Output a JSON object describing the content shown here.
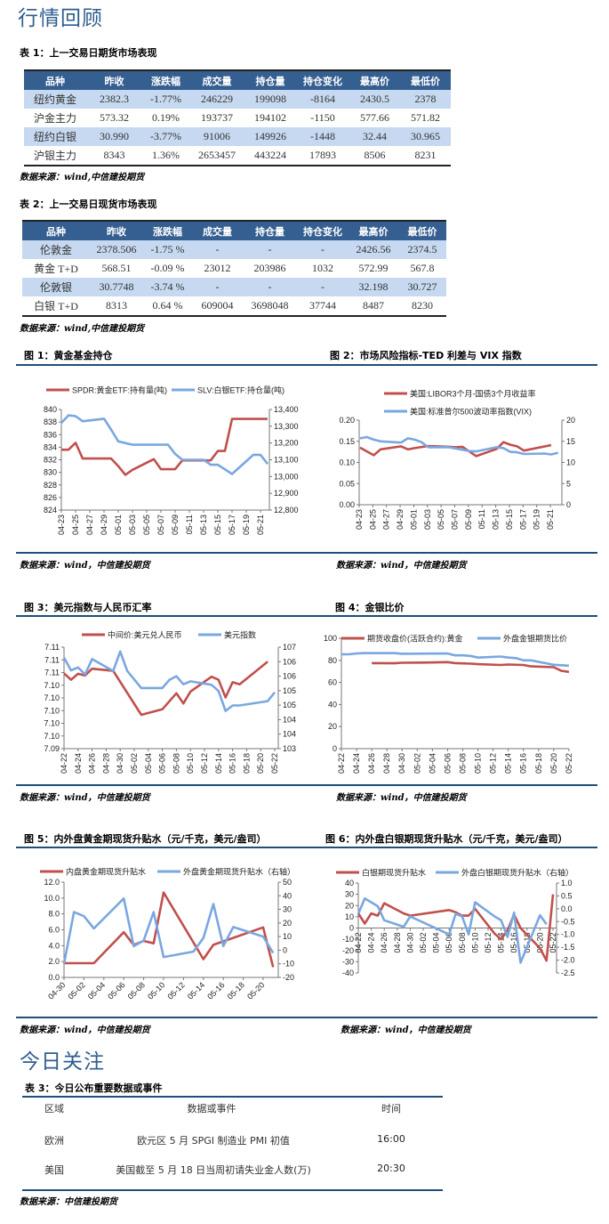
{
  "review": {
    "title": "行情回顾",
    "table1": {
      "caption": "表 1：上一交易日期货市场表现",
      "headers": [
        "品种",
        "昨收",
        "涨跌幅",
        "成交量",
        "持仓量",
        "持仓变化",
        "最高价",
        "最低价"
      ],
      "rows": [
        [
          "纽约黄金",
          "2382.3",
          "-1.77%",
          "246229",
          "199098",
          "-8164",
          "2430.5",
          "2378"
        ],
        [
          "沪金主力",
          "573.32",
          "0.19%",
          "193737",
          "194102",
          "-1150",
          "577.66",
          "571.82"
        ],
        [
          "纽约白银",
          "30.990",
          "-3.77%",
          "91006",
          "149926",
          "-1448",
          "32.44",
          "30.965"
        ],
        [
          "沪银主力",
          "8343",
          "1.36%",
          "2653457",
          "443224",
          "17893",
          "8506",
          "8231"
        ]
      ],
      "source": "数据来源：wind,中信建投期货"
    },
    "table2": {
      "caption": "表 2：上一交易日现货市场表现",
      "headers": [
        "品种",
        "昨收",
        "涨跌幅",
        "成交量",
        "持仓量",
        "持仓变化",
        "最高价",
        "最低价"
      ],
      "rows": [
        [
          "伦敦金",
          "2378.506",
          "-1.75 %",
          "-",
          "-",
          "-",
          "2426.56",
          "2374.5"
        ],
        [
          "黄金 T+D",
          "568.51",
          "-0.09 %",
          "23012",
          "203986",
          "1032",
          "572.99",
          "567.8"
        ],
        [
          "伦敦银",
          "30.7748",
          "-3.74 %",
          "-",
          "-",
          "-",
          "32.198",
          "30.727"
        ],
        [
          "白银 T+D",
          "8313",
          "0.64 %",
          "609004",
          "3698048",
          "37744",
          "8487",
          "8230"
        ]
      ],
      "source": "数据来源：wind,中信建投期货"
    }
  },
  "figures": [
    {
      "title": "图 1：黄金基金持仓",
      "source": "数据来源：wind，中信建投期货"
    },
    {
      "title": "图 2：市场风险指标-TED 利差与 VIX 指数",
      "source": "数据来源：wind，中信建投期货"
    },
    {
      "title": "图 3：美元指数与人民币汇率",
      "source": "数据来源：wind，中信建投期货"
    },
    {
      "title": "图 4：金银比价",
      "source": "数据来源：wind，中信建投期货"
    },
    {
      "title": "图 5：内外盘黄金期现货升贴水（元/千克，美元/盎司）",
      "source": "数据来源：wind，中信建投期货"
    },
    {
      "title": "图 6：内外盘白银期现货升贴水（元/千克，美元/盎司）",
      "source": "数据来源：wind，中信建投期货"
    }
  ],
  "chart_data": [
    {
      "type": "line",
      "title": "图 1：黄金基金持仓",
      "ylim_left": [
        824,
        840
      ],
      "ylim_right": [
        12800,
        13400
      ],
      "left_ticks": [
        "840",
        "838",
        "836",
        "834",
        "832",
        "830",
        "828",
        "826",
        "824"
      ],
      "right_ticks": [
        "13,400",
        "13,300",
        "13,200",
        "13,100",
        "13,000",
        "12,900",
        "12,800"
      ],
      "x_ticks": [
        "04-23",
        "04-25",
        "04-27",
        "04-29",
        "05-01",
        "05-03",
        "05-05",
        "05-07",
        "05-09",
        "05-11",
        "05-13",
        "05-15",
        "05-17",
        "05-19",
        "05-21"
      ],
      "legend": "top",
      "series": [
        {
          "name": "SPDR:黄金ETF:持有量(吨)",
          "axis": "left",
          "color": "#c0504d",
          "x": [
            "04-23",
            "04-24",
            "04-25",
            "04-26",
            "04-29",
            "04-30",
            "05-01",
            "05-02",
            "05-03",
            "05-06",
            "05-07",
            "05-08",
            "05-09",
            "05-10",
            "05-13",
            "05-14",
            "05-15",
            "05-16",
            "05-17",
            "05-20",
            "05-21",
            "05-22"
          ],
          "y": [
            833.6,
            833.6,
            834.7,
            832.2,
            832.2,
            832.2,
            831.0,
            829.6,
            830.4,
            832.1,
            830.5,
            830.5,
            830.5,
            831.9,
            831.9,
            831.9,
            833.4,
            833.4,
            838.5,
            838.5,
            838.5,
            838.5
          ]
        },
        {
          "name": "SLV:白银ETF:持仓量(吨)",
          "axis": "right",
          "color": "#7aa7e0",
          "x": [
            "04-23",
            "04-24",
            "04-25",
            "04-26",
            "04-29",
            "04-30",
            "05-01",
            "05-02",
            "05-03",
            "05-06",
            "05-08",
            "05-09",
            "05-10",
            "05-13",
            "05-14",
            "05-15",
            "05-17",
            "05-20",
            "05-21",
            "05-22"
          ],
          "y": [
            13320,
            13365,
            13360,
            13330,
            13345,
            13280,
            13210,
            13200,
            13190,
            13190,
            13190,
            13135,
            13100,
            13100,
            13070,
            13070,
            13015,
            13130,
            13130,
            13075
          ]
        }
      ]
    },
    {
      "type": "line",
      "title": "图 2：市场风险指标-TED 利差与 VIX 指数",
      "ylim_left": [
        0,
        0.2
      ],
      "ylim_right": [
        0,
        20
      ],
      "left_ticks": [
        "0.20",
        "0.15",
        "0.10",
        "0.05",
        "0.00"
      ],
      "right_ticks": [
        "20",
        "15",
        "10",
        "5",
        "0"
      ],
      "x_ticks": [
        "04-23",
        "04-25",
        "04-27",
        "04-29",
        "05-01",
        "05-03",
        "05-05",
        "05-07",
        "05-09",
        "05-11",
        "05-13",
        "05-15",
        "05-17",
        "05-19",
        "05-21"
      ],
      "legend": "top",
      "series": [
        {
          "name": "美国:LIBOR3个月-国债3个月收益率",
          "axis": "left",
          "color": "#c0504d",
          "x": [
            "04-23",
            "04-25",
            "04-26",
            "04-29",
            "04-30",
            "05-01",
            "05-03",
            "05-06",
            "05-07",
            "05-08",
            "05-10",
            "05-13",
            "05-14",
            "05-15",
            "05-16",
            "05-17",
            "05-21"
          ],
          "y": [
            0.135,
            0.117,
            0.131,
            0.138,
            0.131,
            0.134,
            0.139,
            0.137,
            0.136,
            0.137,
            0.115,
            0.132,
            0.148,
            0.142,
            0.138,
            0.128,
            0.141
          ]
        },
        {
          "name": "美国:标准普尔500波动率指数(VIX)",
          "axis": "right",
          "color": "#7aa7e0",
          "x": [
            "04-23",
            "04-24",
            "04-25",
            "04-26",
            "04-29",
            "04-30",
            "05-01",
            "05-02",
            "05-03",
            "05-06",
            "05-07",
            "05-09",
            "05-10",
            "05-13",
            "05-14",
            "05-15",
            "05-16",
            "05-17",
            "05-20",
            "05-21",
            "05-22"
          ],
          "y": [
            15.7,
            16.0,
            15.4,
            15.0,
            14.7,
            15.7,
            15.4,
            14.8,
            13.6,
            13.6,
            13.3,
            12.7,
            12.6,
            13.6,
            13.4,
            12.5,
            12.4,
            12.0,
            12.1,
            11.9,
            12.3
          ]
        }
      ]
    },
    {
      "type": "line",
      "title": "图 3：美元指数与人民币汇率",
      "ylim_left": [
        7.09,
        7.114
      ],
      "ylim_right": [
        103.5,
        107
      ],
      "left_ticks": [
        "7.11",
        "7.11",
        "7.11",
        "7.10",
        "7.10",
        "7.10",
        "7.10",
        "7.10",
        "7.09"
      ],
      "right_ticks": [
        "107",
        "106",
        "106",
        "105",
        "105",
        "104",
        "104",
        "103"
      ],
      "x_ticks": [
        "04-22",
        "04-24",
        "04-26",
        "04-28",
        "04-30",
        "05-02",
        "05-04",
        "05-06",
        "05-08",
        "05-10",
        "05-12",
        "05-14",
        "05-16",
        "05-18",
        "05-20",
        "05-22"
      ],
      "legend": "top",
      "series": [
        {
          "name": "中间价:美元兑人民币",
          "axis": "left",
          "color": "#c0504d",
          "x": [
            "04-22",
            "04-23",
            "04-24",
            "04-25",
            "04-26",
            "04-29",
            "05-03",
            "05-06",
            "05-08",
            "05-09",
            "05-10",
            "05-13",
            "05-14",
            "05-15",
            "05-16",
            "05-17",
            "05-21"
          ],
          "y": [
            7.1078,
            7.1063,
            7.1077,
            7.1073,
            7.1089,
            7.1084,
            7.098,
            7.0993,
            7.1031,
            7.1007,
            7.1035,
            7.107,
            7.1063,
            7.1021,
            7.1057,
            7.1052,
            7.1106
          ]
        },
        {
          "name": "美元指数",
          "axis": "right",
          "color": "#7aa7e0",
          "x": [
            "04-22",
            "04-23",
            "04-24",
            "04-25",
            "04-26",
            "04-29",
            "04-30",
            "05-01",
            "05-03",
            "05-06",
            "05-07",
            "05-08",
            "05-09",
            "05-10",
            "05-13",
            "05-14",
            "05-15",
            "05-16",
            "05-17",
            "05-21",
            "05-22"
          ],
          "y": [
            106.64,
            106.2,
            106.3,
            106.06,
            106.59,
            106.18,
            106.85,
            106.18,
            105.59,
            105.59,
            105.87,
            106.0,
            105.72,
            105.82,
            105.7,
            105.49,
            104.8,
            104.99,
            104.99,
            105.14,
            105.44
          ]
        }
      ]
    },
    {
      "type": "line",
      "title": "图 4：金银比价",
      "ylim_left": [
        0,
        100
      ],
      "left_ticks": [
        "100",
        "80",
        "60",
        "40",
        "20",
        "0"
      ],
      "x_ticks": [
        "04-22",
        "04-24",
        "04-26",
        "04-28",
        "04-30",
        "05-02",
        "05-04",
        "05-06",
        "05-08",
        "05-10",
        "05-12",
        "05-14",
        "05-16",
        "05-18",
        "05-20",
        "05-22"
      ],
      "legend": "top",
      "series": [
        {
          "name": "期货收盘价(活跃合约):黄金",
          "axis": "left",
          "color": "#c0504d",
          "x": [
            "04-26",
            "04-29",
            "04-30",
            "05-03",
            "05-06",
            "05-07",
            "05-09",
            "05-10",
            "05-13",
            "05-14",
            "05-16",
            "05-17",
            "05-20",
            "05-21",
            "05-22"
          ],
          "y": [
            77.5,
            77.3,
            77.8,
            78.0,
            78.4,
            77.5,
            77.0,
            76.5,
            75.8,
            76.2,
            75.8,
            74.5,
            73.8,
            70.5,
            69.5
          ]
        },
        {
          "name": "外盘金银期货比价",
          "axis": "left",
          "color": "#7aa7e0",
          "x": [
            "04-22",
            "04-23",
            "04-24",
            "04-25",
            "04-29",
            "04-30",
            "05-06",
            "05-07",
            "05-08",
            "05-09",
            "05-10",
            "05-13",
            "05-14",
            "05-15",
            "05-16",
            "05-17",
            "05-20",
            "05-22"
          ],
          "y": [
            85.5,
            85.5,
            86.2,
            86.5,
            86.5,
            86.0,
            86.2,
            84.5,
            84.5,
            84.0,
            82.5,
            83.5,
            82.5,
            82.0,
            80.0,
            80.0,
            76.0,
            75.2
          ]
        }
      ]
    },
    {
      "type": "line",
      "title": "图 5：内外盘黄金期现货升贴水（元/千克，美元/盎司）",
      "ylim_left": [
        0,
        12
      ],
      "ylim_right": [
        -20,
        50
      ],
      "left_ticks": [
        "12.0",
        "10.0",
        "8.0",
        "6.0",
        "4.0",
        "2.0",
        "0.0"
      ],
      "right_ticks": [
        "50",
        "40",
        "30",
        "20",
        "10",
        "0",
        "-10",
        "-20"
      ],
      "x_ticks": [
        "04-30",
        "05-02",
        "05-04",
        "05-06",
        "05-08",
        "05-10",
        "05-12",
        "05-14",
        "05-16",
        "05-18",
        "05-20"
      ],
      "legend": "top",
      "series": [
        {
          "name": "内盘黄金期现货升贴水",
          "axis": "left",
          "color": "#c0504d",
          "x": [
            "04-30",
            "05-01",
            "05-03",
            "05-06",
            "05-07",
            "05-08",
            "05-09",
            "05-10",
            "05-14",
            "05-15",
            "05-20",
            "05-21"
          ],
          "y": [
            1.8,
            1.8,
            1.8,
            5.7,
            4.1,
            4.6,
            4.3,
            10.7,
            2.3,
            4.1,
            6.3,
            1.3
          ]
        },
        {
          "name": "外盘黄金期现货升贴水（右轴）",
          "axis": "right",
          "color": "#7aa7e0",
          "x": [
            "04-30",
            "05-01",
            "05-02",
            "05-03",
            "05-06",
            "05-07",
            "05-08",
            "05-09",
            "05-10",
            "05-13",
            "05-14",
            "05-15",
            "05-16",
            "05-17",
            "05-20",
            "05-21"
          ],
          "y": [
            -10,
            28,
            25,
            16,
            38,
            3,
            7,
            28,
            -5,
            -1,
            9,
            34,
            3,
            17,
            10,
            -2
          ]
        }
      ]
    },
    {
      "type": "line",
      "title": "图 6：内外盘白银期现货升贴水（元/千克，美元/盎司）",
      "ylim_left": [
        -40,
        40
      ],
      "ylim_right": [
        -2.5,
        1.0
      ],
      "left_ticks": [
        "40",
        "30",
        "20",
        "10",
        "0",
        "-10",
        "-20",
        "-30",
        "-40"
      ],
      "right_ticks": [
        "1.0",
        "0.5",
        "0.0",
        "-0.5",
        "-1.0",
        "-1.5",
        "-2.0",
        "-2.5"
      ],
      "x_ticks": [
        "04-22",
        "04-24",
        "04-26",
        "04-28",
        "04-30",
        "05-02",
        "05-04",
        "05-06",
        "05-08",
        "05-10",
        "05-12",
        "05-14",
        "05-16",
        "05-18",
        "05-20",
        "05-22"
      ],
      "legend": "top",
      "series": [
        {
          "name": "白银期现货升贴水",
          "axis": "left",
          "color": "#c0504d",
          "x": [
            "04-22",
            "04-23",
            "04-24",
            "04-25",
            "04-26",
            "04-29",
            "04-30",
            "05-06",
            "05-07",
            "05-08",
            "05-09",
            "05-10",
            "05-13",
            "05-14",
            "05-15",
            "05-16",
            "05-17",
            "05-20",
            "05-21",
            "05-22"
          ],
          "y": [
            13,
            4,
            13,
            11,
            22,
            13,
            11,
            16,
            14,
            11,
            11,
            17,
            -5,
            -10,
            -2,
            12,
            0,
            -18,
            -29,
            30
          ]
        },
        {
          "name": "外盘白银期现货升贴水（右轴）",
          "axis": "right",
          "color": "#7aa7e0",
          "x": [
            "04-22",
            "04-23",
            "04-25",
            "04-26",
            "04-29",
            "04-30",
            "05-06",
            "05-07",
            "05-08",
            "05-09",
            "05-10",
            "05-13",
            "05-14",
            "05-15",
            "05-16",
            "05-17",
            "05-20",
            "05-21"
          ],
          "y": [
            -0.2,
            0.4,
            0.1,
            -0.45,
            -0.7,
            -0.3,
            -1.0,
            -0.2,
            -0.3,
            -1.0,
            0.25,
            -0.3,
            -0.45,
            -1.1,
            -0.15,
            -2.1,
            -0.25,
            -0.6
          ]
        }
      ]
    }
  ],
  "today": {
    "title": "今日关注",
    "caption": "表 3：今日公布重要数据或事件",
    "headers": [
      "区域",
      "数据或事件",
      "时间"
    ],
    "rows": [
      [
        "欧洲",
        "欧元区 5 月 SPGI 制造业 PMI 初值",
        "16:00"
      ],
      [
        "美国",
        "美国截至 5 月 18 日当周初请失业金人数(万)",
        "20:30"
      ]
    ],
    "source": "数据来源：中信建投期货"
  }
}
